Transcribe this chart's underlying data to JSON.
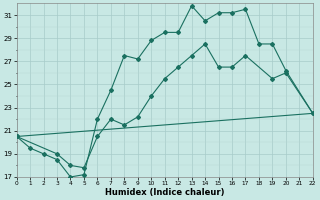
{
  "xlabel": "Humidex (Indice chaleur)",
  "bg_color": "#c8e8e4",
  "grid_major_color": "#a8ccca",
  "grid_minor_color": "#b8d8d4",
  "line_color": "#1a7060",
  "xlim": [
    0,
    22
  ],
  "ylim": [
    17,
    32
  ],
  "yticks": [
    17,
    19,
    21,
    23,
    25,
    27,
    29,
    31
  ],
  "yticks_minor": [
    18,
    20,
    22,
    24,
    26,
    28,
    30
  ],
  "line1_x": [
    0,
    1,
    2,
    3,
    4,
    5,
    6,
    7,
    8,
    9,
    10,
    11,
    12,
    13,
    14,
    15,
    16,
    17,
    18,
    19,
    20,
    22
  ],
  "line1_y": [
    20.5,
    19.5,
    19.0,
    18.5,
    17.0,
    17.2,
    22.0,
    24.5,
    27.5,
    27.2,
    28.8,
    29.5,
    29.5,
    31.8,
    30.5,
    31.2,
    31.2,
    31.5,
    28.5,
    28.5,
    26.2,
    22.5
  ],
  "line2_x": [
    0,
    3,
    4,
    5,
    6,
    7,
    8,
    9,
    10,
    11,
    12,
    13,
    14,
    15,
    16,
    17,
    19,
    20,
    22
  ],
  "line2_y": [
    20.5,
    19.0,
    18.0,
    17.8,
    20.5,
    22.0,
    21.5,
    22.2,
    24.0,
    25.5,
    26.5,
    27.5,
    28.5,
    26.5,
    26.5,
    27.5,
    25.5,
    26.0,
    22.5
  ],
  "line3_x": [
    0,
    22
  ],
  "line3_y": [
    20.5,
    22.5
  ]
}
